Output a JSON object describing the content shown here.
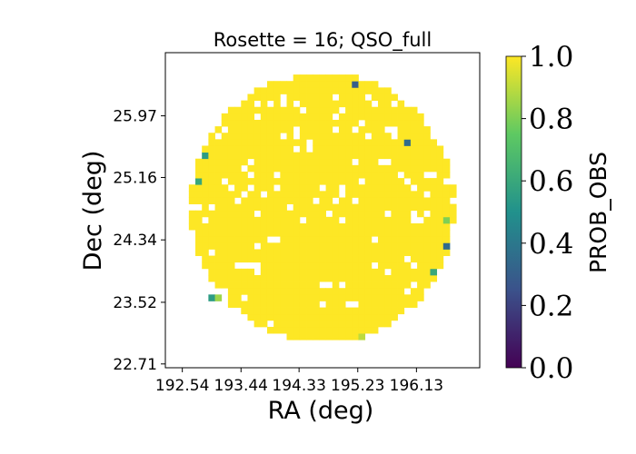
{
  "chart_data": {
    "type": "heatmap",
    "title": "Rosette = 16; QSO_full",
    "xlabel": "RA (deg)",
    "ylabel": "Dec (deg)",
    "xlim": [
      192.28,
      197.1
    ],
    "ylim": [
      22.66,
      26.8
    ],
    "xticks": [
      192.54,
      193.44,
      194.33,
      195.23,
      196.13
    ],
    "xtick_labels": [
      "192.54",
      "193.44",
      "194.33",
      "195.23",
      "196.13"
    ],
    "yticks": [
      22.71,
      23.52,
      24.34,
      25.16,
      25.97
    ],
    "ytick_labels": [
      "22.71",
      "23.52",
      "24.34",
      "25.16",
      "25.97"
    ],
    "footprint": {
      "center_ra": 194.69,
      "center_dec": 24.77,
      "radius_ra": 2.03,
      "radius_dec": 1.77,
      "cell_size_ra": 0.1,
      "cell_size_dec": 0.085,
      "fill_value": 1.0,
      "empty_cell_fraction": 0.07
    },
    "special_cells": [
      {
        "ra": 195.2,
        "dec": 26.39,
        "value": 0.3
      },
      {
        "ra": 195.96,
        "dec": 25.6,
        "value": 0.35
      },
      {
        "ra": 192.86,
        "dec": 25.44,
        "value": 0.55
      },
      {
        "ra": 192.77,
        "dec": 25.11,
        "value": 0.6
      },
      {
        "ra": 196.57,
        "dec": 24.58,
        "value": 0.8
      },
      {
        "ra": 196.55,
        "dec": 24.23,
        "value": 0.35
      },
      {
        "ra": 196.4,
        "dec": 23.95,
        "value": 0.6
      },
      {
        "ra": 193.01,
        "dec": 23.61,
        "value": 0.55
      },
      {
        "ra": 193.08,
        "dec": 23.61,
        "value": 0.85
      },
      {
        "ra": 195.26,
        "dec": 23.05,
        "value": 0.9
      }
    ],
    "colorbar": {
      "label": "PROB_OBS",
      "min": 0.0,
      "max": 1.0,
      "ticks": [
        0.0,
        0.2,
        0.4,
        0.6,
        0.8,
        1.0
      ],
      "tick_labels": [
        "0.0",
        "0.2",
        "0.4",
        "0.6",
        "0.8",
        "1.0"
      ],
      "colormap": "viridis",
      "colormap_stops": [
        "#440154",
        "#3b528b",
        "#21918c",
        "#5ec962",
        "#fde725"
      ]
    },
    "grid": false
  }
}
